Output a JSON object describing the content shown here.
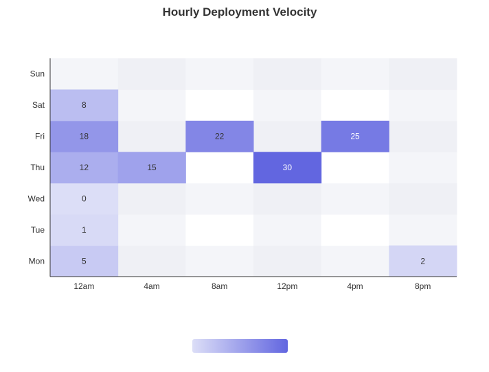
{
  "chart_data": {
    "type": "heatmap",
    "title": "Hourly Deployment Velocity",
    "xlabel": "",
    "ylabel": "",
    "x_categories": [
      "12am",
      "4am",
      "8am",
      "12pm",
      "4pm",
      "8pm"
    ],
    "y_categories": [
      "Mon",
      "Tue",
      "Wed",
      "Thu",
      "Fri",
      "Sat",
      "Sun"
    ],
    "cells": [
      {
        "x": "12am",
        "y": "Mon",
        "value": 5
      },
      {
        "x": "8pm",
        "y": "Mon",
        "value": 2
      },
      {
        "x": "12am",
        "y": "Tue",
        "value": 1
      },
      {
        "x": "12am",
        "y": "Wed",
        "value": 0
      },
      {
        "x": "12am",
        "y": "Thu",
        "value": 12
      },
      {
        "x": "4am",
        "y": "Thu",
        "value": 15
      },
      {
        "x": "12pm",
        "y": "Thu",
        "value": 30
      },
      {
        "x": "12am",
        "y": "Fri",
        "value": 18
      },
      {
        "x": "8am",
        "y": "Fri",
        "value": 22
      },
      {
        "x": "4pm",
        "y": "Fri",
        "value": 25
      },
      {
        "x": "12am",
        "y": "Sat",
        "value": 8
      }
    ],
    "color_range": [
      0,
      30
    ],
    "colors": {
      "low": "#dcdef7",
      "high": "#6266e0",
      "empty_a": "#f4f5f9",
      "empty_b": "#eff0f5",
      "axis": "#333333"
    },
    "legend": {
      "type": "color-scale",
      "position": "bottom-center"
    },
    "grid": false
  }
}
